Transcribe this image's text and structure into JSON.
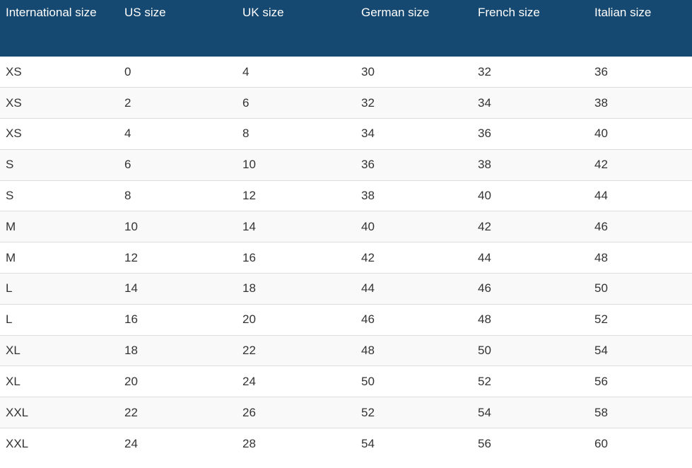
{
  "table": {
    "headers": [
      "International size",
      "US size",
      "UK size",
      "German size",
      "French size",
      "Italian size"
    ],
    "rows": [
      [
        "XS",
        "0",
        "4",
        "30",
        "32",
        "36"
      ],
      [
        "XS",
        "2",
        "6",
        "32",
        "34",
        "38"
      ],
      [
        "XS",
        "4",
        "8",
        "34",
        "36",
        "40"
      ],
      [
        "S",
        "6",
        "10",
        "36",
        "38",
        "42"
      ],
      [
        "S",
        "8",
        "12",
        "38",
        "40",
        "44"
      ],
      [
        "M",
        "10",
        "14",
        "40",
        "42",
        "46"
      ],
      [
        "M",
        "12",
        "16",
        "42",
        "44",
        "48"
      ],
      [
        "L",
        "14",
        "18",
        "44",
        "46",
        "50"
      ],
      [
        "L",
        "16",
        "20",
        "46",
        "48",
        "52"
      ],
      [
        "XL",
        "18",
        "22",
        "48",
        "50",
        "54"
      ],
      [
        "XL",
        "20",
        "24",
        "50",
        "52",
        "56"
      ],
      [
        "XXL",
        "22",
        "26",
        "52",
        "54",
        "58"
      ],
      [
        "XXL",
        "24",
        "28",
        "54",
        "56",
        "60"
      ]
    ]
  },
  "colors": {
    "header_background": "#164971",
    "header_text": "#ffffff",
    "body_text": "#333333",
    "row_stripe": "#f9f9f9",
    "row_border": "#dddddd"
  }
}
